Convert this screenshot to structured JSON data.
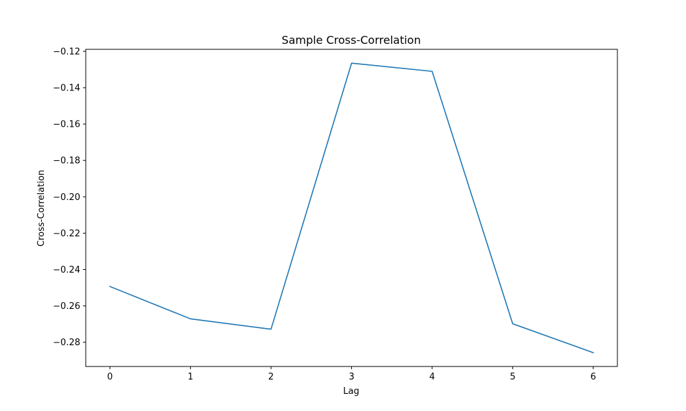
{
  "chart_data": {
    "type": "line",
    "title": "Sample Cross-Correlation",
    "xlabel": "Lag",
    "ylabel": "Cross-Correlation",
    "x": [
      0,
      1,
      2,
      3,
      4,
      5,
      6
    ],
    "series": [
      {
        "values": [
          -0.2493,
          -0.2671,
          -0.2728,
          -0.1265,
          -0.131,
          -0.2698,
          -0.2857
        ],
        "color": "#1f77b4"
      }
    ],
    "xticks": [
      "0",
      "1",
      "2",
      "3",
      "4",
      "5",
      "6"
    ],
    "yticks": [
      "−0.12",
      "−0.14",
      "−0.16",
      "−0.18",
      "−0.20",
      "−0.22",
      "−0.24",
      "−0.26",
      "−0.28"
    ],
    "ytick_values": [
      -0.12,
      -0.14,
      -0.16,
      -0.18,
      -0.2,
      -0.22,
      -0.24,
      -0.26,
      -0.28
    ],
    "xlim": [
      -0.3,
      6.3
    ],
    "ylim": [
      -0.2933,
      -0.1189
    ],
    "grid": false
  }
}
